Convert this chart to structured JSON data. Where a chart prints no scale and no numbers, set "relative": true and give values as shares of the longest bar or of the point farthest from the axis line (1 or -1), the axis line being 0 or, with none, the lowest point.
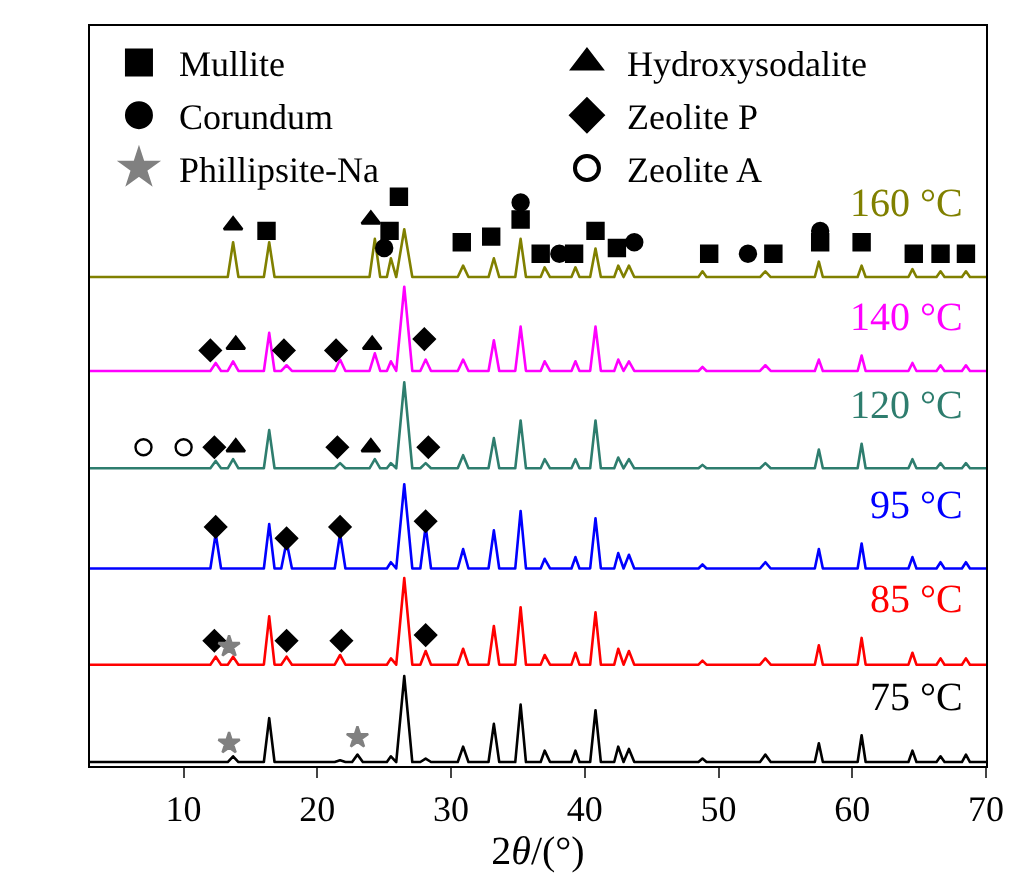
{
  "chart_data": {
    "type": "line",
    "relative": true,
    "xlabel": "2θ/(°)",
    "legend": "top",
    "xlim": [
      3,
      70
    ],
    "xticks": [
      10,
      20,
      30,
      40,
      50,
      60,
      70
    ],
    "x": [
      3,
      12,
      12.4,
      12.8,
      13.3,
      13.7,
      14.1,
      16,
      16.4,
      16.8,
      17.3,
      17.7,
      18.1,
      21.3,
      21.7,
      22.1,
      22.6,
      23,
      23.4,
      23.9,
      24.3,
      24.7,
      25.2,
      25.5,
      25.9,
      26.5,
      27.1,
      27.7,
      28.1,
      28.5,
      30.5,
      30.9,
      31.3,
      32.8,
      33.2,
      33.6,
      34.8,
      35.2,
      35.6,
      36.7,
      37,
      37.4,
      39,
      39.3,
      39.6,
      40.4,
      40.8,
      41.2,
      42.2,
      42.5,
      42.9,
      43.3,
      43.7,
      48.5,
      48.8,
      49.1,
      53.1,
      53.5,
      53.9,
      57.2,
      57.5,
      57.8,
      60.4,
      60.7,
      61,
      64.2,
      64.5,
      64.8,
      66.3,
      66.6,
      66.9,
      68.2,
      68.5,
      68.8,
      70
    ],
    "series": [
      {
        "name": "75 °C",
        "color": "#000000",
        "values": [
          0.007,
          0.007,
          0.007,
          0.007,
          0.007,
          0.017,
          0.007,
          0.007,
          0.084,
          0.007,
          0.007,
          0.007,
          0.007,
          0.007,
          0.01,
          0.007,
          0.007,
          0.02,
          0.007,
          0.007,
          0.007,
          0.007,
          0.007,
          0.017,
          0.007,
          0.158,
          0.007,
          0.007,
          0.013,
          0.007,
          0.007,
          0.034,
          0.007,
          0.007,
          0.074,
          0.007,
          0.007,
          0.108,
          0.007,
          0.007,
          0.027,
          0.007,
          0.007,
          0.027,
          0.007,
          0.007,
          0.098,
          0.007,
          0.007,
          0.034,
          0.007,
          0.03,
          0.007,
          0.007,
          0.013,
          0.007,
          0.007,
          0.02,
          0.007,
          0.007,
          0.04,
          0.007,
          0.007,
          0.054,
          0.007,
          0.007,
          0.027,
          0.007,
          0.007,
          0.017,
          0.007,
          0.007,
          0.02,
          0.007,
          0.007
        ]
      },
      {
        "name": "85 °C",
        "color": "#ff0000",
        "values": [
          0.178,
          0.178,
          0.192,
          0.178,
          0.178,
          0.192,
          0.178,
          0.178,
          0.263,
          0.178,
          0.178,
          0.192,
          0.178,
          0.178,
          0.195,
          0.178,
          0.178,
          0.178,
          0.178,
          0.178,
          0.178,
          0.178,
          0.178,
          0.189,
          0.178,
          0.33,
          0.178,
          0.178,
          0.202,
          0.178,
          0.178,
          0.206,
          0.178,
          0.178,
          0.246,
          0.178,
          0.178,
          0.279,
          0.178,
          0.178,
          0.195,
          0.178,
          0.178,
          0.199,
          0.178,
          0.178,
          0.27,
          0.178,
          0.178,
          0.206,
          0.178,
          0.202,
          0.178,
          0.178,
          0.185,
          0.178,
          0.178,
          0.189,
          0.178,
          0.178,
          0.212,
          0.178,
          0.178,
          0.225,
          0.178,
          0.178,
          0.199,
          0.178,
          0.178,
          0.189,
          0.178,
          0.178,
          0.189,
          0.178,
          0.178
        ]
      },
      {
        "name": "95 °C",
        "color": "#0000ff",
        "values": [
          0.347,
          0.347,
          0.408,
          0.347,
          0.347,
          0.347,
          0.347,
          0.347,
          0.425,
          0.347,
          0.347,
          0.394,
          0.347,
          0.347,
          0.408,
          0.347,
          0.347,
          0.347,
          0.347,
          0.347,
          0.347,
          0.347,
          0.347,
          0.358,
          0.347,
          0.495,
          0.347,
          0.347,
          0.421,
          0.347,
          0.347,
          0.381,
          0.347,
          0.347,
          0.414,
          0.347,
          0.347,
          0.448,
          0.347,
          0.347,
          0.364,
          0.347,
          0.347,
          0.367,
          0.347,
          0.347,
          0.435,
          0.347,
          0.347,
          0.374,
          0.347,
          0.371,
          0.347,
          0.347,
          0.354,
          0.347,
          0.347,
          0.358,
          0.347,
          0.347,
          0.381,
          0.347,
          0.347,
          0.391,
          0.347,
          0.347,
          0.367,
          0.347,
          0.347,
          0.358,
          0.347,
          0.347,
          0.358,
          0.347,
          0.347
        ]
      },
      {
        "name": "120 °C",
        "color": "#2e7d6e",
        "values": [
          0.523,
          0.523,
          0.536,
          0.523,
          0.523,
          0.539,
          0.523,
          0.523,
          0.59,
          0.523,
          0.523,
          0.523,
          0.523,
          0.523,
          0.532,
          0.523,
          0.523,
          0.523,
          0.523,
          0.523,
          0.539,
          0.523,
          0.523,
          0.532,
          0.523,
          0.674,
          0.523,
          0.523,
          0.532,
          0.523,
          0.523,
          0.546,
          0.523,
          0.523,
          0.576,
          0.523,
          0.523,
          0.607,
          0.523,
          0.523,
          0.539,
          0.523,
          0.523,
          0.539,
          0.523,
          0.523,
          0.607,
          0.523,
          0.523,
          0.542,
          0.523,
          0.539,
          0.523,
          0.523,
          0.529,
          0.523,
          0.523,
          0.532,
          0.523,
          0.523,
          0.556,
          0.523,
          0.523,
          0.566,
          0.523,
          0.523,
          0.539,
          0.523,
          0.523,
          0.532,
          0.523,
          0.523,
          0.532,
          0.523,
          0.523
        ]
      },
      {
        "name": "140 °C",
        "color": "#ff00ff",
        "values": [
          0.694,
          0.694,
          0.708,
          0.694,
          0.694,
          0.711,
          0.694,
          0.694,
          0.761,
          0.694,
          0.694,
          0.704,
          0.694,
          0.694,
          0.714,
          0.694,
          0.694,
          0.694,
          0.694,
          0.694,
          0.725,
          0.694,
          0.694,
          0.711,
          0.694,
          0.842,
          0.694,
          0.694,
          0.714,
          0.694,
          0.694,
          0.714,
          0.694,
          0.694,
          0.748,
          0.694,
          0.694,
          0.772,
          0.694,
          0.694,
          0.711,
          0.694,
          0.694,
          0.711,
          0.694,
          0.694,
          0.772,
          0.694,
          0.694,
          0.714,
          0.694,
          0.711,
          0.694,
          0.694,
          0.701,
          0.694,
          0.694,
          0.704,
          0.694,
          0.694,
          0.714,
          0.694,
          0.694,
          0.721,
          0.694,
          0.694,
          0.708,
          0.694,
          0.694,
          0.704,
          0.694,
          0.694,
          0.704,
          0.694,
          0.694
        ]
      },
      {
        "name": "160 °C",
        "color": "#808000",
        "values": [
          0.859,
          0.859,
          0.859,
          0.859,
          0.859,
          0.92,
          0.859,
          0.859,
          0.92,
          0.859,
          0.859,
          0.859,
          0.859,
          0.859,
          0.859,
          0.859,
          0.859,
          0.859,
          0.859,
          0.859,
          0.926,
          0.859,
          0.859,
          0.892,
          0.859,
          0.943,
          0.859,
          0.859,
          0.859,
          0.859,
          0.859,
          0.879,
          0.859,
          0.859,
          0.892,
          0.859,
          0.859,
          0.926,
          0.859,
          0.859,
          0.876,
          0.859,
          0.859,
          0.876,
          0.859,
          0.859,
          0.909,
          0.859,
          0.859,
          0.879,
          0.859,
          0.879,
          0.859,
          0.859,
          0.869,
          0.859,
          0.859,
          0.869,
          0.859,
          0.859,
          0.886,
          0.859,
          0.859,
          0.879,
          0.859,
          0.859,
          0.873,
          0.859,
          0.859,
          0.869,
          0.859,
          0.859,
          0.869,
          0.859,
          0.859
        ]
      },
      {
        "name": "Mullite",
        "type": "scatter",
        "marker": "square",
        "color": "#000000",
        "x": [
          16.2,
          25.4,
          26.1,
          30.8,
          33.0,
          35.2,
          36.7,
          39.2,
          40.8,
          42.4,
          49.3,
          54.1,
          57.6,
          60.7,
          64.6,
          66.6,
          68.5
        ],
        "values": [
          0.94,
          0.94,
          1,
          0.92,
          0.93,
          0.96,
          0.9,
          0.9,
          0.94,
          0.91,
          0.9,
          0.9,
          0.92,
          0.92,
          0.9,
          0.9,
          0.9
        ]
      },
      {
        "name": "Hydroxysodalite",
        "type": "scatter",
        "marker": "triangle",
        "color": "#000000",
        "x": [
          13.7,
          24.0,
          13.9,
          24.1,
          13.9,
          24.0
        ],
        "values": [
          0.95,
          0.96,
          0.74,
          0.74,
          0.56,
          0.56
        ]
      },
      {
        "name": "Corundum",
        "type": "scatter",
        "marker": "circle",
        "color": "#000000",
        "x": [
          25.0,
          35.2,
          38.1,
          43.7,
          52.2,
          57.6
        ],
        "values": [
          0.91,
          0.99,
          0.9,
          0.92,
          0.9,
          0.94
        ]
      },
      {
        "name": "Zeolite P",
        "type": "scatter",
        "marker": "diamond",
        "color": "#000000",
        "x": [
          12.0,
          17.5,
          21.4,
          28.0,
          12.3,
          21.5,
          28.3,
          12.4,
          17.7,
          21.7,
          28.1,
          12.3,
          17.7,
          21.8,
          28.1
        ],
        "values": [
          0.73,
          0.73,
          0.73,
          0.75,
          0.56,
          0.56,
          0.56,
          0.42,
          0.4,
          0.42,
          0.43,
          0.22,
          0.22,
          0.22,
          0.23
        ]
      },
      {
        "name": "Phillipsite-Na",
        "type": "scatter",
        "marker": "star",
        "color": "#808080",
        "x": [
          13.4,
          13.4,
          23.0
        ],
        "values": [
          0.21,
          0.04,
          0.05
        ]
      },
      {
        "name": "Zeolite A",
        "type": "scatter",
        "marker": "circle-open",
        "color": "#000000",
        "x": [
          7.0,
          10.0
        ],
        "values": [
          0.56,
          0.56
        ]
      }
    ]
  }
}
